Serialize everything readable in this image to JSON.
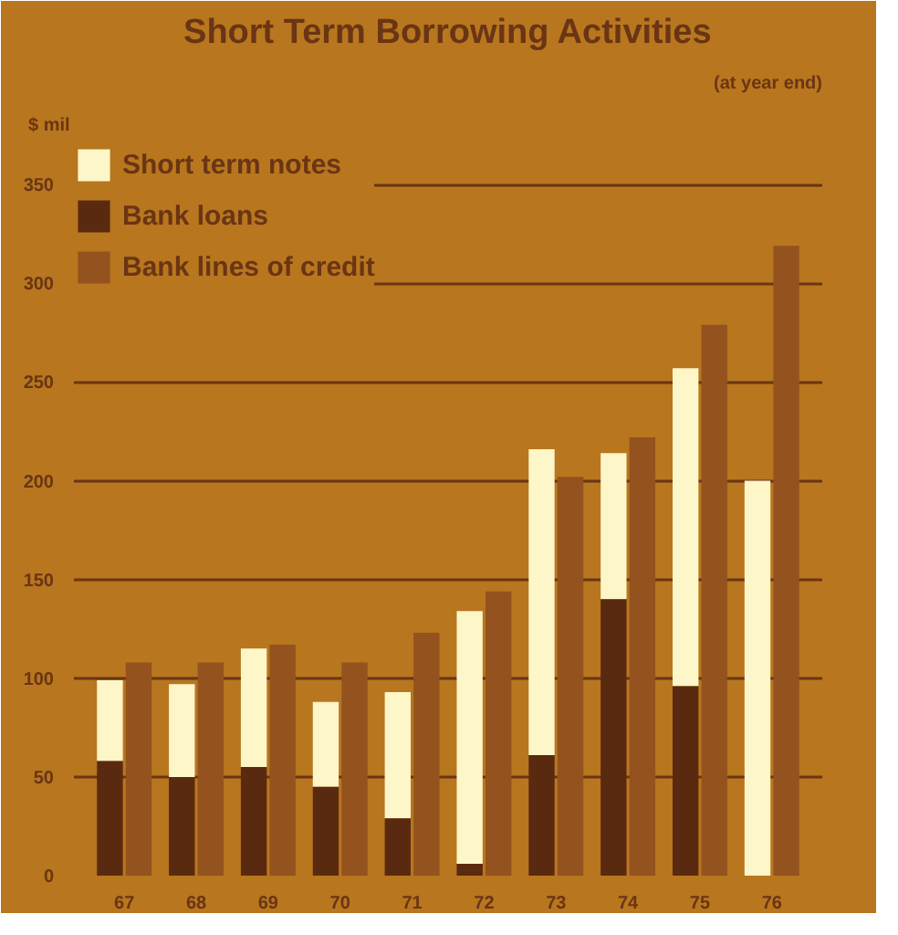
{
  "chart_data": {
    "type": "bar",
    "title": "Short Term Borrowing Activities",
    "subtitle": "(at year end)",
    "ylabel": "$ mil",
    "categories": [
      "67",
      "68",
      "69",
      "70",
      "71",
      "72",
      "73",
      "74",
      "75",
      "76"
    ],
    "series": [
      {
        "name": "Short term notes",
        "color": "#fdf6c8",
        "base": [
          58,
          50,
          55,
          45,
          29,
          6,
          61,
          140,
          96,
          0
        ],
        "values": [
          41,
          47,
          60,
          43,
          64,
          128,
          155,
          74,
          161,
          200
        ]
      },
      {
        "name": "Bank loans",
        "color": "#5a2a10",
        "values": [
          58,
          50,
          55,
          45,
          29,
          6,
          61,
          140,
          96,
          0
        ]
      },
      {
        "name": "Bank lines of credit",
        "color": "#94521e",
        "values": [
          108,
          108,
          117,
          108,
          123,
          144,
          202,
          222,
          279,
          319
        ]
      }
    ],
    "ylim": [
      0,
      370
    ],
    "yticks": [
      0,
      50,
      100,
      150,
      200,
      250,
      300,
      350
    ],
    "grid": "y",
    "legend": "top left"
  }
}
